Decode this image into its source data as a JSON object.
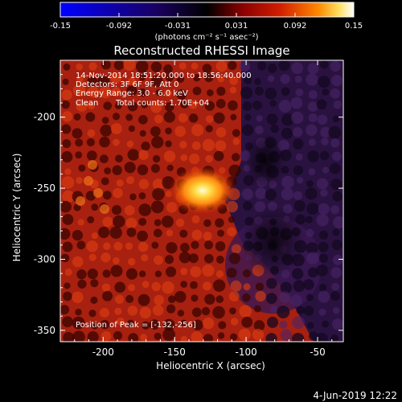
{
  "chart_data": {
    "type": "heatmap",
    "title": "Reconstructed RHESSI Image",
    "colorbar": {
      "ticks": [
        "-0.15",
        "-0.092",
        "-0.031",
        "0.031",
        "0.092",
        "0.15"
      ],
      "unit_line": "(photons cm⁻² s⁻¹ asec⁻²)",
      "range": [
        -0.15,
        0.15
      ]
    },
    "xlabel": "Heliocentric X (arcsec)",
    "ylabel": "Heliocentric Y (arcsec)",
    "xlim": [
      -230,
      -32
    ],
    "ylim": [
      -358,
      -160
    ],
    "x_ticks": [
      "-200",
      "-150",
      "-100",
      "-50"
    ],
    "x_tick_values": [
      -200,
      -150,
      -100,
      -50
    ],
    "y_ticks": [
      "-200",
      "-250",
      "-300",
      "-350"
    ],
    "y_tick_values": [
      -200,
      -250,
      -300,
      -350
    ],
    "peak": {
      "x": -132,
      "y": -256
    },
    "annotations": {
      "time_range": "14-Nov-2014 18:51:20.000 to 18:56:40.000",
      "detectors": "Detectors: 3F 6F 9F, Att 0",
      "energy": "Energy Range: 3.0 - 6.0 keV",
      "method": "Clean",
      "counts": "Total counts: 1.70E+04",
      "peak_label": "Position of Peak = [-132,-256]"
    },
    "colors": {
      "negative": "#0000ff",
      "zero": "#000000",
      "mid": "#c81400",
      "positive_high": "#ffe050",
      "max": "#ffffff"
    }
  },
  "footer": {
    "date": "4-Jun-2019 12:22"
  }
}
